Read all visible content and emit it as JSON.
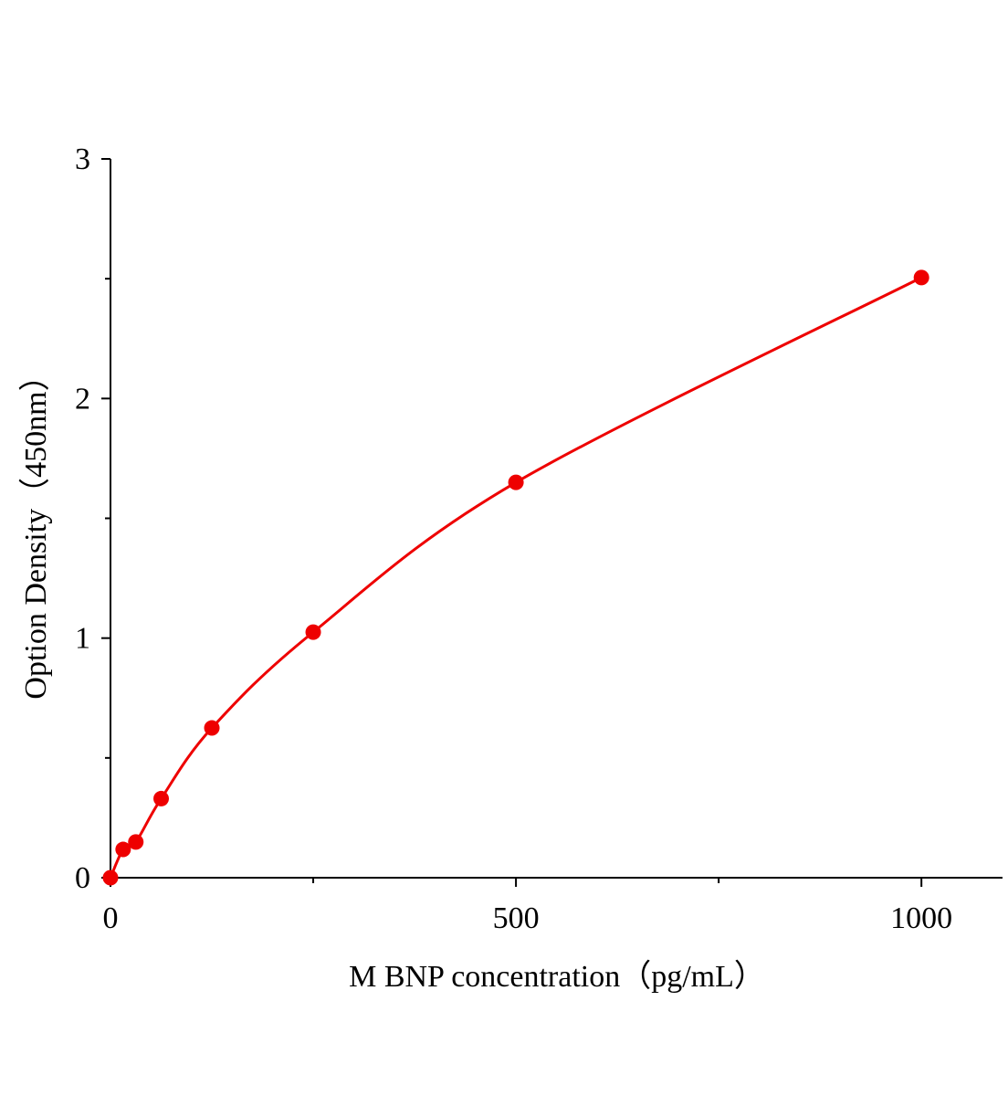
{
  "chart_data": {
    "type": "scatter",
    "x_label": "M BNP concentration（pg/mL）",
    "y_label": "Option Density（450nm）",
    "series": [
      {
        "x": [
          0,
          15.6,
          31.25,
          62.5,
          125,
          250,
          500,
          1000
        ],
        "values": [
          0,
          0.118,
          0.149,
          0.33,
          0.625,
          1.025,
          1.65,
          2.505
        ],
        "color": "#ee0000",
        "fit_line": true
      }
    ],
    "xlim": [
      0,
      1100
    ],
    "xticks": [
      0,
      500,
      1000
    ],
    "x_minor_ticks": [
      250,
      750
    ],
    "ylim": [
      0,
      3
    ],
    "yticks": [
      0,
      1,
      2,
      3
    ],
    "y_minor_ticks": [
      0.5,
      1.5,
      2.5
    ]
  }
}
